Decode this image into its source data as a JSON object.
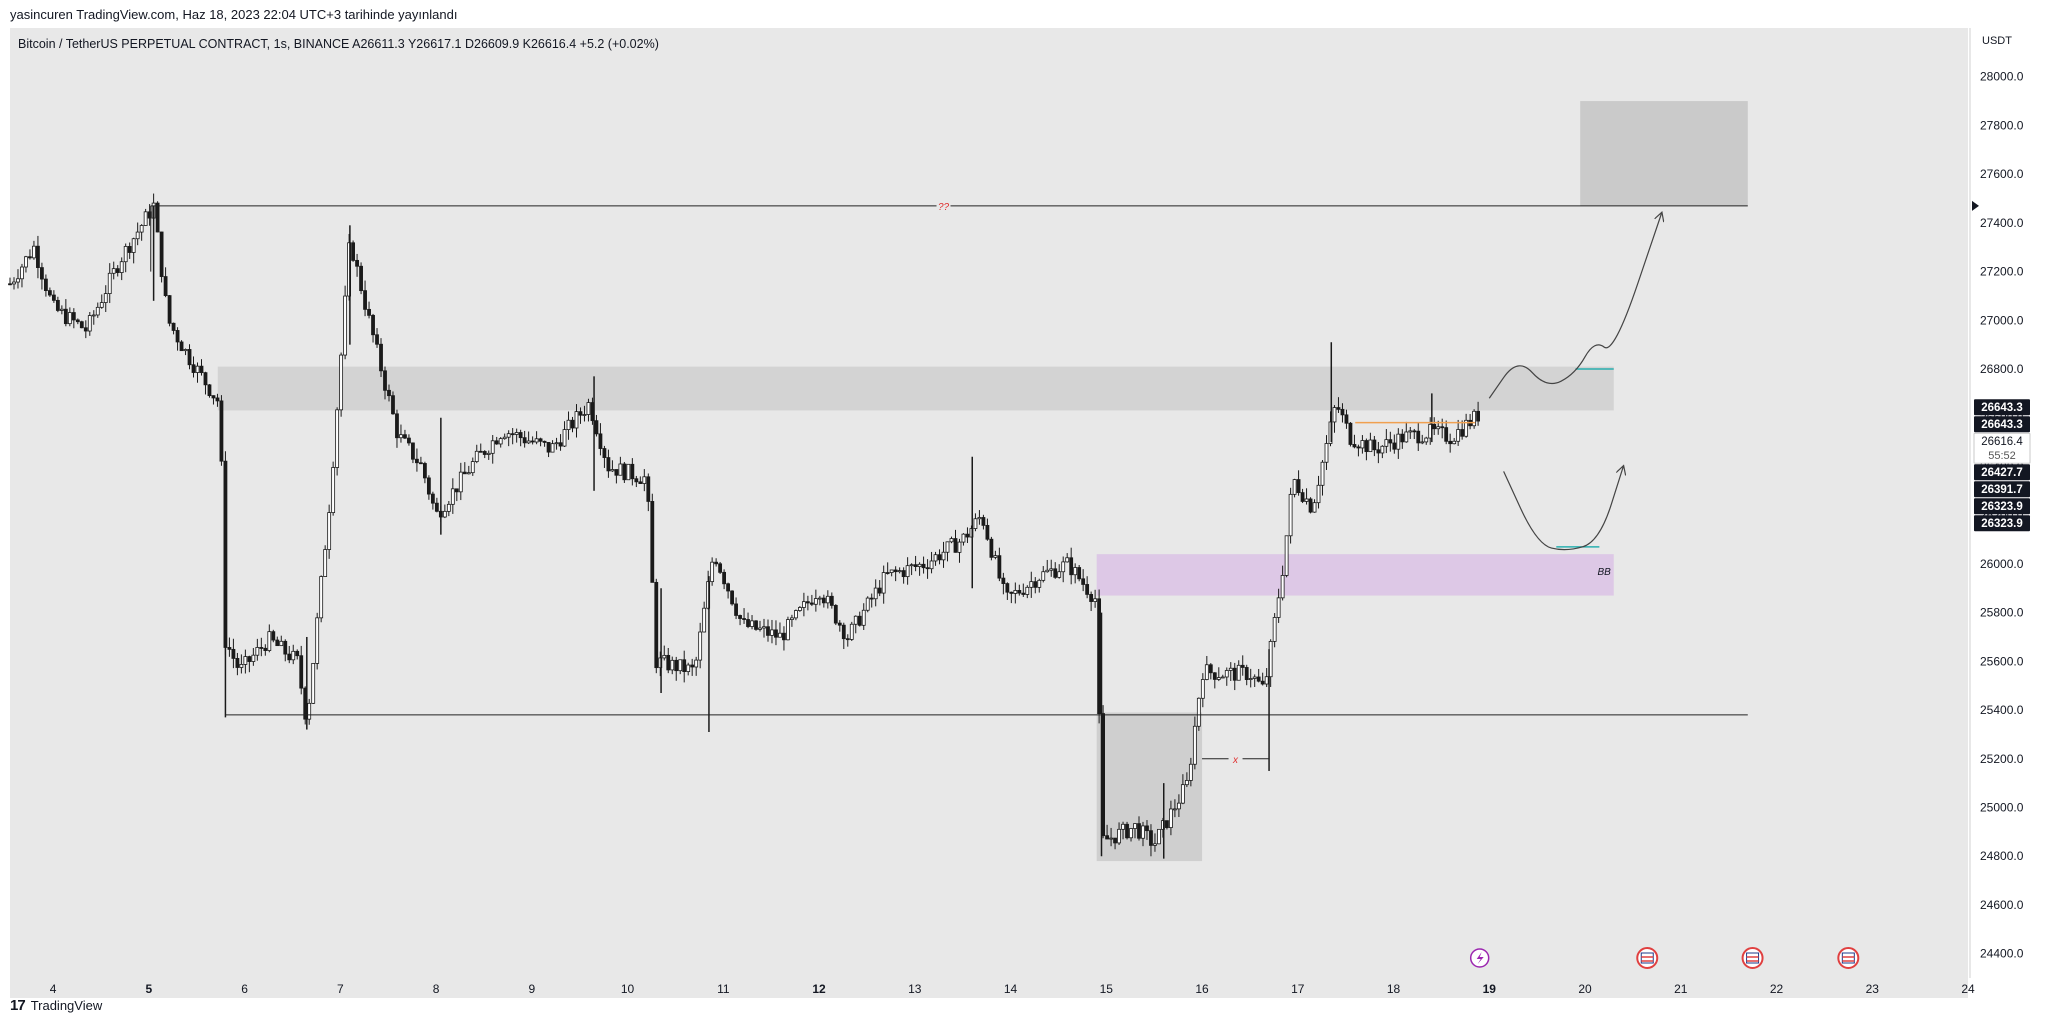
{
  "header": {
    "published": "yasincuren TradingView.com, Haz 18, 2023 22:04 UTC+3 tarihinde yayınlandı"
  },
  "footer": {
    "logo": "17",
    "brand": "TradingView"
  },
  "chart_data": {
    "type": "candlestick",
    "symbol_line": "Bitcoin / TetherUS PERPETUAL CONTRACT, 1s, BINANCE  A26611.3  Y26617.1  D26609.9  K26616.4  +5.2 (+0.02%)",
    "currency": "USDT",
    "ylim": [
      24300,
      28200
    ],
    "xlim": [
      3.55,
      24.0
    ],
    "y_ticks": [
      "24400.0",
      "24600.0",
      "24800.0",
      "25000.0",
      "25200.0",
      "25400.0",
      "25600.0",
      "25800.0",
      "26000.0",
      "26200.0",
      "26400.0",
      "26600.0",
      "26800.0",
      "27000.0",
      "27200.0",
      "27400.0",
      "27600.0",
      "27800.0",
      "28000.0"
    ],
    "x_ticks": [
      {
        "x": 4,
        "label": "4",
        "bold": false
      },
      {
        "x": 5,
        "label": "5",
        "bold": true
      },
      {
        "x": 6,
        "label": "6",
        "bold": false
      },
      {
        "x": 7,
        "label": "7",
        "bold": false
      },
      {
        "x": 8,
        "label": "8",
        "bold": false
      },
      {
        "x": 9,
        "label": "9",
        "bold": false
      },
      {
        "x": 10,
        "label": "10",
        "bold": false
      },
      {
        "x": 11,
        "label": "11",
        "bold": false
      },
      {
        "x": 12,
        "label": "12",
        "bold": true
      },
      {
        "x": 13,
        "label": "13",
        "bold": false
      },
      {
        "x": 14,
        "label": "14",
        "bold": false
      },
      {
        "x": 15,
        "label": "15",
        "bold": false
      },
      {
        "x": 16,
        "label": "16",
        "bold": false
      },
      {
        "x": 17,
        "label": "17",
        "bold": false
      },
      {
        "x": 18,
        "label": "18",
        "bold": false
      },
      {
        "x": 19,
        "label": "19",
        "bold": true
      },
      {
        "x": 20,
        "label": "20",
        "bold": false
      },
      {
        "x": 21,
        "label": "21",
        "bold": false
      },
      {
        "x": 22,
        "label": "22",
        "bold": false
      },
      {
        "x": 23,
        "label": "23",
        "bold": false
      },
      {
        "x": 24,
        "label": "24",
        "bold": false
      }
    ],
    "price_path": [
      [
        3.55,
        27150
      ],
      [
        3.8,
        27300
      ],
      [
        4.0,
        27050
      ],
      [
        4.35,
        26960
      ],
      [
        4.7,
        27250
      ],
      [
        5.05,
        27470
      ],
      [
        5.2,
        27000
      ],
      [
        5.4,
        26860
      ],
      [
        5.7,
        26680
      ],
      [
        5.75,
        26660
      ],
      [
        5.78,
        25700
      ],
      [
        5.95,
        25560
      ],
      [
        6.25,
        25690
      ],
      [
        6.55,
        25600
      ],
      [
        6.65,
        25350
      ],
      [
        6.9,
        26300
      ],
      [
        7.1,
        27330
      ],
      [
        7.3,
        27000
      ],
      [
        7.6,
        26530
      ],
      [
        7.85,
        26400
      ],
      [
        8.0,
        26200
      ],
      [
        8.4,
        26420
      ],
      [
        8.7,
        26550
      ],
      [
        9.2,
        26470
      ],
      [
        9.6,
        26660
      ],
      [
        9.8,
        26400
      ],
      [
        10.2,
        26350
      ],
      [
        10.3,
        25600
      ],
      [
        10.7,
        25560
      ],
      [
        10.9,
        26050
      ],
      [
        11.2,
        25750
      ],
      [
        11.6,
        25700
      ],
      [
        12.0,
        25900
      ],
      [
        12.3,
        25700
      ],
      [
        12.7,
        25950
      ],
      [
        13.1,
        26000
      ],
      [
        13.5,
        26100
      ],
      [
        13.7,
        26200
      ],
      [
        13.95,
        25850
      ],
      [
        14.3,
        25950
      ],
      [
        14.6,
        26000
      ],
      [
        14.9,
        25850
      ],
      [
        14.95,
        24860
      ],
      [
        15.3,
        24920
      ],
      [
        15.5,
        24850
      ],
      [
        15.85,
        25100
      ],
      [
        16.0,
        25560
      ],
      [
        16.2,
        25550
      ],
      [
        16.5,
        25550
      ],
      [
        16.65,
        25480
      ],
      [
        16.85,
        26000
      ],
      [
        16.95,
        26350
      ],
      [
        17.15,
        26230
      ],
      [
        17.4,
        26660
      ],
      [
        17.55,
        26520
      ],
      [
        17.8,
        26470
      ],
      [
        18.1,
        26520
      ],
      [
        18.4,
        26540
      ],
      [
        18.6,
        26520
      ],
      [
        18.9,
        26616
      ]
    ],
    "wick_extremes": [
      {
        "x": 5.05,
        "low": 27080,
        "high": 27470
      },
      {
        "x": 5.8,
        "low": 25370,
        "high": 26000
      },
      {
        "x": 6.65,
        "low": 25320,
        "high": 25700
      },
      {
        "x": 7.1,
        "low": 26900,
        "high": 27390
      },
      {
        "x": 8.05,
        "low": 26120,
        "high": 26600
      },
      {
        "x": 9.65,
        "low": 26300,
        "high": 26770
      },
      {
        "x": 10.35,
        "low": 25470,
        "high": 25900
      },
      {
        "x": 10.85,
        "low": 25310,
        "high": 25950
      },
      {
        "x": 13.6,
        "low": 25900,
        "high": 26440
      },
      {
        "x": 14.95,
        "low": 24800,
        "high": 25800
      },
      {
        "x": 15.6,
        "low": 24790,
        "high": 25100
      },
      {
        "x": 16.7,
        "low": 25150,
        "high": 25650
      },
      {
        "x": 17.35,
        "low": 26500,
        "high": 26910
      },
      {
        "x": 18.4,
        "low": 26500,
        "high": 26700
      }
    ],
    "zones": [
      {
        "x0": 5.72,
        "x1": 20.3,
        "y0": 26630,
        "y1": 26810,
        "color": "#cfcfcf",
        "opacity": 0.85
      },
      {
        "x0": 14.9,
        "x1": 20.3,
        "y0": 25870,
        "y1": 26040,
        "color": "#dcc4e6",
        "opacity": 0.9
      },
      {
        "x0": 14.9,
        "x1": 16.0,
        "y0": 24780,
        "y1": 25390,
        "color": "#cacaca",
        "opacity": 0.85
      },
      {
        "x0": 19.95,
        "x1": 21.7,
        "y0": 27470,
        "y1": 27900,
        "color": "#cacaca",
        "opacity": 1.0
      }
    ],
    "levels": [
      {
        "x0": 5.02,
        "x1": 21.7,
        "y": 27470,
        "label": "??",
        "label_x": 13.3,
        "label_color": "#e03030"
      },
      {
        "x0": 5.8,
        "x1": 21.7,
        "y": 25380
      },
      {
        "x0": 16.0,
        "x1": 16.7,
        "y": 25200,
        "label": "x",
        "label_x": 16.35,
        "label_color": "#e03030"
      }
    ],
    "short_lines": [
      {
        "x0": 17.6,
        "x1": 18.85,
        "y": 26580,
        "color": "#f0a050"
      },
      {
        "x0": 19.9,
        "x1": 20.3,
        "y": 26800,
        "color": "#2ab0b0"
      },
      {
        "x0": 19.7,
        "x1": 20.15,
        "y": 26070,
        "color": "#2ab0b0"
      }
    ],
    "zone_labels": [
      {
        "x": 20.2,
        "y": 25955,
        "text": "BB"
      }
    ],
    "projections": [
      {
        "points": [
          [
            19.0,
            26680
          ],
          [
            19.3,
            26850
          ],
          [
            19.6,
            26720
          ],
          [
            19.9,
            26780
          ],
          [
            20.1,
            26920
          ],
          [
            20.3,
            26860
          ],
          [
            20.8,
            27440
          ]
        ]
      },
      {
        "points": [
          [
            19.15,
            26380
          ],
          [
            19.5,
            26080
          ],
          [
            19.8,
            26050
          ],
          [
            20.15,
            26090
          ],
          [
            20.4,
            26400
          ]
        ]
      }
    ],
    "price_labels": [
      {
        "y": 26643.3,
        "text": "26643.3",
        "style": "dark"
      },
      {
        "y": 26643.3,
        "text": "26643.3",
        "style": "dark",
        "stack": 1
      },
      {
        "y": 26616.4,
        "text": "26616.4",
        "style": "light",
        "sub": "55:52"
      },
      {
        "y": 26427.7,
        "text": "26427.7",
        "style": "dark"
      },
      {
        "y": 26391.7,
        "text": "26391.7",
        "style": "dark"
      },
      {
        "y": 26323.9,
        "text": "26323.9",
        "style": "dark"
      },
      {
        "y": 26323.9,
        "text": "26323.9",
        "style": "dark",
        "stack": 1
      }
    ],
    "event_icons": [
      {
        "x": 18.9,
        "kind": "bolt"
      },
      {
        "x": 20.65,
        "kind": "flag"
      },
      {
        "x": 21.75,
        "kind": "flag"
      },
      {
        "x": 22.75,
        "kind": "flag"
      }
    ],
    "colors": {
      "plot_bg": "#e8e8e8",
      "candle": "#1a1a1a",
      "axis_text": "#131722",
      "dark_label": "#131722",
      "bolt": "#9c27b0",
      "flag": "#e04040"
    }
  }
}
